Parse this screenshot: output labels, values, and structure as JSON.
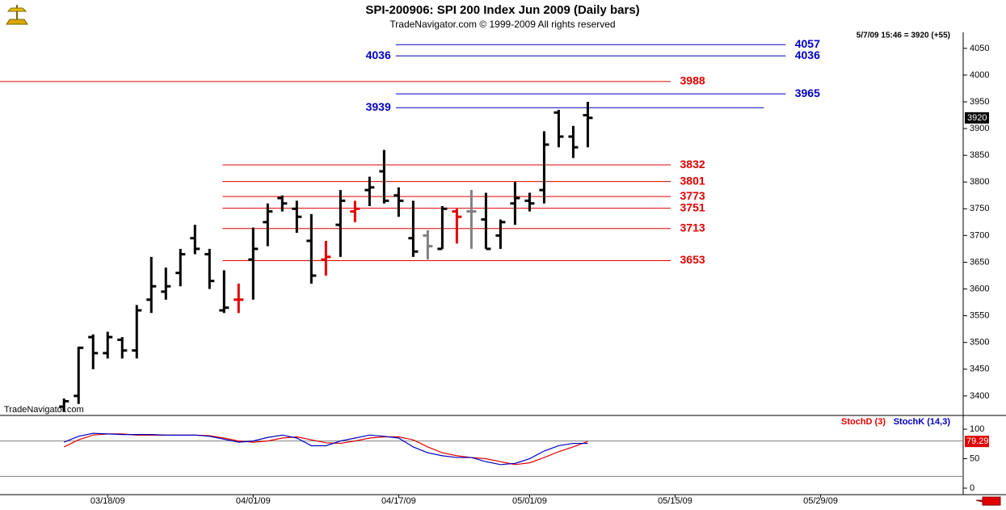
{
  "header": {
    "title": "SPI-200906:  SPI 200 Index Jun 2009  (Daily bars)",
    "subtitle": "TradeNavigator.com © 1999-2009 All rights reserved",
    "watermark": "TradeNavigator.com"
  },
  "chart_data": [
    {
      "type": "ohlc",
      "quote": "5/7/09 15:46 = 3920 (+55)",
      "open": [
        3380,
        3400,
        3510,
        3480,
        3505,
        3485,
        3580,
        3595,
        3630,
        3695,
        3665,
        3560,
        3580,
        3655,
        3725,
        3770,
        3750,
        3690,
        3655,
        3720,
        3745,
        3785,
        3820,
        3775,
        3695,
        3700,
        3675,
        3745,
        3745,
        3730,
        3700,
        3760,
        3765,
        3785,
        3930,
        3885,
        3925
      ],
      "high": [
        3395,
        3492,
        3515,
        3520,
        3510,
        3570,
        3660,
        3640,
        3675,
        3720,
        3675,
        3635,
        3610,
        3715,
        3760,
        3775,
        3765,
        3740,
        3690,
        3785,
        3765,
        3810,
        3860,
        3790,
        3765,
        3710,
        3755,
        3750,
        3785,
        3780,
        3730,
        3800,
        3780,
        3895,
        3935,
        3905,
        3950
      ],
      "low": [
        3370,
        3385,
        3450,
        3470,
        3470,
        3470,
        3555,
        3580,
        3605,
        3665,
        3600,
        3555,
        3555,
        3580,
        3680,
        3745,
        3705,
        3610,
        3625,
        3660,
        3725,
        3755,
        3760,
        3735,
        3660,
        3655,
        3675,
        3685,
        3675,
        3675,
        3675,
        3720,
        3745,
        3760,
        3865,
        3845,
        3865
      ],
      "close": [
        3390,
        3490,
        3480,
        3510,
        3485,
        3560,
        3605,
        3605,
        3665,
        3675,
        3615,
        3565,
        3580,
        3675,
        3745,
        3760,
        3735,
        3625,
        3660,
        3765,
        3750,
        3790,
        3765,
        3765,
        3670,
        3680,
        3750,
        3735,
        3745,
        3675,
        3725,
        3770,
        3760,
        3870,
        3885,
        3865,
        3920
      ],
      "colors": [
        "#000",
        "#000",
        "#000",
        "#000",
        "#000",
        "#000",
        "#000",
        "#000",
        "#000",
        "#000",
        "#000",
        "#000",
        "#e00000",
        "#000",
        "#000",
        "#000",
        "#000",
        "#000",
        "#e00000",
        "#000",
        "#e00000",
        "#000",
        "#000",
        "#000",
        "#000",
        "#808080",
        "#000",
        "#e00000",
        "#808080",
        "#000",
        "#000",
        "#000",
        "#000",
        "#000",
        "#000",
        "#000",
        "#000"
      ],
      "levels": [
        {
          "value": 4057,
          "color": "#0000c0",
          "x1": 22.8,
          "x2": 49.6,
          "label_side": "right"
        },
        {
          "value": 4036,
          "color": "#0000c0",
          "x1": 22.8,
          "x2": 49.6,
          "label_side": "both"
        },
        {
          "value": 3988,
          "color": "#e00000",
          "x1": -4.4,
          "x2": 41.7,
          "label_side": "right"
        },
        {
          "value": 3965,
          "color": "#0000c0",
          "x1": 22.8,
          "x2": 49.6,
          "label_side": "right"
        },
        {
          "value": 3939,
          "color": "#0000c0",
          "x1": 22.8,
          "x2": 48.1,
          "label_side": "left"
        },
        {
          "value": 3832,
          "color": "#e00000",
          "x1": 10.9,
          "x2": 41.7,
          "label_side": "right"
        },
        {
          "value": 3801,
          "color": "#e00000",
          "x1": 10.9,
          "x2": 41.7,
          "label_side": "right"
        },
        {
          "value": 3773,
          "color": "#e00000",
          "x1": 10.9,
          "x2": 41.7,
          "label_side": "right"
        },
        {
          "value": 3751,
          "color": "#e00000",
          "x1": 10.9,
          "x2": 41.7,
          "label_side": "right"
        },
        {
          "value": 3713,
          "color": "#e00000",
          "x1": 10.9,
          "x2": 41.7,
          "label_side": "right"
        },
        {
          "value": 3653,
          "color": "#e00000",
          "x1": 10.9,
          "x2": 41.7,
          "label_side": "right"
        }
      ],
      "xlim": [
        -4.4,
        61.8
      ],
      "xticks": [
        {
          "value": 3,
          "label": "03/18/09"
        },
        {
          "value": 13,
          "label": "04/01/09"
        },
        {
          "value": 23,
          "label": "04/17/09"
        },
        {
          "value": 32,
          "label": "05/01/09"
        },
        {
          "value": 42,
          "label": "05/15/09"
        },
        {
          "value": 52,
          "label": "05/29/09"
        }
      ],
      "ylim": [
        3365,
        4080
      ],
      "yticks": [
        3400,
        3450,
        3500,
        3550,
        3600,
        3650,
        3700,
        3750,
        3800,
        3850,
        3900,
        3950,
        4000,
        4050
      ]
    },
    {
      "type": "line",
      "series": [
        {
          "name": "StochD (3)",
          "color": "#e00000",
          "values": [
            70,
            82,
            90,
            92,
            92,
            90,
            90,
            90,
            90,
            90,
            89,
            85,
            80,
            78,
            80,
            85,
            87,
            82,
            77,
            76,
            80,
            85,
            87,
            87,
            82,
            70,
            60,
            55,
            52,
            50,
            45,
            40,
            43,
            52,
            62,
            70,
            79.29
          ]
        },
        {
          "name": "StochK (14,3)",
          "color": "#0000c0",
          "values": [
            78,
            88,
            93,
            92,
            91,
            91,
            91,
            90,
            90,
            90,
            88,
            83,
            78,
            80,
            86,
            90,
            85,
            72,
            72,
            80,
            85,
            90,
            88,
            85,
            70,
            60,
            55,
            52,
            52,
            45,
            40,
            42,
            50,
            63,
            72,
            76,
            76
          ]
        }
      ],
      "reference_lines": [
        80,
        20
      ],
      "xlim": [
        -4.4,
        61.8
      ],
      "ylim": [
        -11,
        122
      ],
      "yticks": [
        0,
        50,
        100
      ]
    }
  ]
}
